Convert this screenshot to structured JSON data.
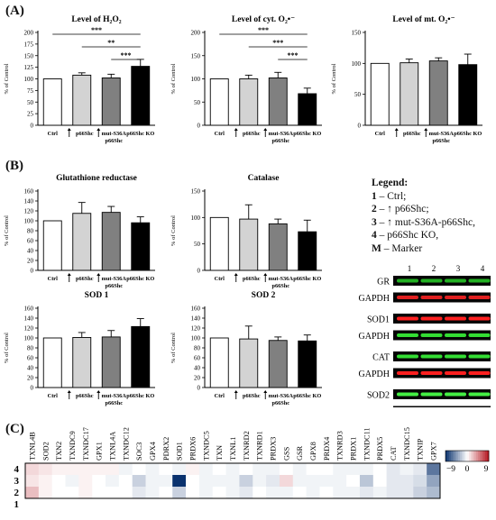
{
  "panels": {
    "A": "(A)",
    "B": "(B)",
    "C": "(C)"
  },
  "bar_colors": [
    "#ffffff",
    "#d3d3d3",
    "#808080",
    "#000000"
  ],
  "common": {
    "ylabel": "% of Control",
    "categories": [
      {
        "lines": [
          "Ctrl"
        ],
        "arrow": false
      },
      {
        "lines": [
          "p66Shc"
        ],
        "arrow": true
      },
      {
        "lines": [
          "mut-S36A",
          "p66Shc"
        ],
        "arrow": true
      },
      {
        "lines": [
          "p66Shc KO"
        ],
        "arrow": false
      }
    ]
  },
  "chart_data": [
    {
      "id": "h2o2",
      "type": "bar",
      "title": "Level of H₂O₂",
      "ylim": [
        0,
        200
      ],
      "yticks": [
        0,
        25,
        50,
        75,
        100,
        125,
        150,
        175,
        200
      ],
      "values": [
        100,
        108,
        102,
        127
      ],
      "errors": [
        0,
        5,
        8,
        15
      ],
      "sig": [
        {
          "from": 0,
          "to": 3,
          "label": "***"
        },
        {
          "from": 1,
          "to": 3,
          "label": "**"
        },
        {
          "from": 2,
          "to": 3,
          "label": "***"
        }
      ]
    },
    {
      "id": "cyt",
      "type": "bar",
      "title": "Level of cyt. O₂•⁻",
      "ylim": [
        0,
        200
      ],
      "yticks": [
        0,
        50,
        100,
        150,
        200
      ],
      "values": [
        100,
        100,
        102,
        68
      ],
      "errors": [
        0,
        8,
        12,
        12
      ],
      "sig": [
        {
          "from": 0,
          "to": 3,
          "label": "***"
        },
        {
          "from": 1,
          "to": 3,
          "label": "***"
        },
        {
          "from": 2,
          "to": 3,
          "label": "***"
        }
      ]
    },
    {
      "id": "mt",
      "type": "bar",
      "title": "Level of mt. O₂•⁻",
      "ylim": [
        0,
        150
      ],
      "yticks": [
        0,
        50,
        100,
        150
      ],
      "values": [
        100,
        101,
        104,
        98
      ],
      "errors": [
        0,
        6,
        5,
        17
      ],
      "sig": []
    },
    {
      "id": "gr",
      "type": "bar",
      "title": "Glutathione reductase",
      "ylim": [
        0,
        160
      ],
      "yticks": [
        0,
        20,
        40,
        60,
        80,
        100,
        120,
        140,
        160
      ],
      "values": [
        100,
        115,
        117,
        96
      ],
      "errors": [
        0,
        22,
        12,
        12
      ],
      "sig": []
    },
    {
      "id": "cat",
      "type": "bar",
      "title": "Catalase",
      "ylim": [
        0,
        150
      ],
      "yticks": [
        0,
        50,
        100,
        150
      ],
      "values": [
        100,
        97,
        88,
        73
      ],
      "errors": [
        0,
        27,
        9,
        22
      ],
      "sig": []
    },
    {
      "id": "sod1",
      "type": "bar",
      "title": "SOD 1",
      "ylim": [
        0,
        160
      ],
      "yticks": [
        0,
        20,
        40,
        60,
        80,
        100,
        120,
        140,
        160
      ],
      "values": [
        100,
        101,
        102,
        123
      ],
      "errors": [
        0,
        10,
        13,
        16
      ],
      "sig": []
    },
    {
      "id": "sod2",
      "type": "bar",
      "title": "SOD 2",
      "ylim": [
        0,
        160
      ],
      "yticks": [
        0,
        20,
        40,
        60,
        80,
        100,
        120,
        140,
        160
      ],
      "values": [
        100,
        98,
        95,
        94
      ],
      "errors": [
        0,
        26,
        7,
        12
      ],
      "sig": []
    },
    {
      "id": "heatmap",
      "type": "heatmap",
      "columns": [
        "TXNL4B",
        "SOD2",
        "TXN2",
        "TXNDC9",
        "TXNDC17",
        "GPX1",
        "TXNL4A",
        "TXNDC12",
        "SOC3",
        "GPX4",
        "PDRX2",
        "SOD1",
        "PRDX6",
        "TXNDC5",
        "TXN",
        "TXNL1",
        "TXNRD2",
        "TXNRD1",
        "PRDX3",
        "GSS",
        "GSR",
        "GPX8",
        "PRDX4",
        "TXNRD3",
        "PRDX1",
        "TXNDC11",
        "PRDX5",
        "CAT",
        "TXNDC15",
        "TXNIP",
        "GPX7"
      ],
      "rows": [
        "4",
        "3",
        "2",
        "1"
      ],
      "scale": [
        -9,
        9
      ],
      "colorbar_labels": [
        "−9",
        "0",
        "9"
      ],
      "values": [
        [
          1.5,
          1,
          0.5,
          0.5,
          0.5,
          0.5,
          0.5,
          -0.5,
          0,
          -0.5,
          0,
          -0.5,
          0.5,
          -0.5,
          0,
          -0.5,
          0,
          -0.5,
          -0.5,
          0,
          -0.5,
          0,
          0,
          -0.5,
          -0.5,
          -0.5,
          0,
          -1,
          -0.5,
          -1,
          -6
        ],
        [
          1,
          0.5,
          0,
          -0.5,
          0.5,
          0,
          -0.5,
          0,
          -2,
          -0.5,
          -0.5,
          -9,
          0,
          -0.5,
          -0.5,
          -0.5,
          -2,
          -0.5,
          -1,
          1.5,
          -0.5,
          -0.5,
          -0.5,
          -0.5,
          0,
          -2.5,
          0,
          -1,
          -1,
          -1.5,
          -4
        ],
        [
          2.5,
          0.5,
          0,
          0,
          0.5,
          0,
          0,
          0,
          -1,
          -0.5,
          0,
          -2,
          0,
          -0.5,
          0,
          -0.5,
          -1,
          0,
          -0.5,
          -0.5,
          0,
          -0.5,
          0,
          -0.5,
          -0.5,
          -1,
          -0.5,
          -1,
          -1,
          -2,
          -3
        ],
        [
          0,
          0,
          0,
          0,
          0,
          0,
          0,
          0,
          0,
          0,
          0,
          0,
          0,
          0,
          0,
          0,
          0,
          0,
          0,
          0,
          0,
          0,
          0,
          0,
          0,
          0,
          0,
          0,
          0,
          0,
          0
        ]
      ]
    }
  ],
  "legend": {
    "title": "Legend:",
    "items": [
      {
        "key": "1",
        "text": " – Ctrl;"
      },
      {
        "key": "2",
        "text": " – ↑ p66Shc;"
      },
      {
        "key": "3",
        "text": " – ↑ mut-S36A-p66Shc,"
      },
      {
        "key": "4",
        "text": " – p66Shc KO,"
      },
      {
        "key": "M",
        "text": " – Marker"
      }
    ]
  },
  "blot": {
    "lanes": [
      "1",
      "2",
      "3",
      "4"
    ],
    "rows": [
      {
        "label": "GR",
        "color": "#22b022"
      },
      {
        "label": "GAPDH",
        "color": "#e02020"
      },
      {
        "label": "SOD1",
        "color": "#ff2020"
      },
      {
        "label": "GAPDH",
        "color": "#33dd33"
      },
      {
        "label": "CAT",
        "color": "#33dd33"
      },
      {
        "label": "GAPDH",
        "color": "#ff2020"
      },
      {
        "label": "SOD2",
        "color": "#44ee44"
      },
      {
        "label": "GAPDH",
        "color": "#44ee44"
      }
    ]
  }
}
